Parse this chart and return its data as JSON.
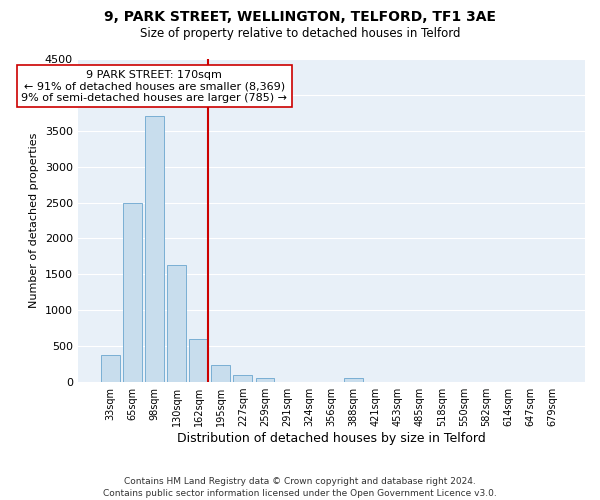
{
  "title": "9, PARK STREET, WELLINGTON, TELFORD, TF1 3AE",
  "subtitle": "Size of property relative to detached houses in Telford",
  "xlabel": "Distribution of detached houses by size in Telford",
  "ylabel": "Number of detached properties",
  "footer_line1": "Contains HM Land Registry data © Crown copyright and database right 2024.",
  "footer_line2": "Contains public sector information licensed under the Open Government Licence v3.0.",
  "bar_labels": [
    "33sqm",
    "65sqm",
    "98sqm",
    "130sqm",
    "162sqm",
    "195sqm",
    "227sqm",
    "259sqm",
    "291sqm",
    "324sqm",
    "356sqm",
    "388sqm",
    "421sqm",
    "453sqm",
    "485sqm",
    "518sqm",
    "550sqm",
    "582sqm",
    "614sqm",
    "647sqm",
    "679sqm"
  ],
  "bar_values": [
    380,
    2500,
    3700,
    1630,
    600,
    240,
    100,
    55,
    0,
    0,
    0,
    50,
    0,
    0,
    0,
    0,
    0,
    0,
    0,
    0,
    0
  ],
  "bar_color": "#c8dded",
  "bar_edge_color": "#7aafd4",
  "highlight_line_color": "#cc0000",
  "annotation_title": "9 PARK STREET: 170sqm",
  "annotation_line1": "← 91% of detached houses are smaller (8,369)",
  "annotation_line2": "9% of semi-detached houses are larger (785) →",
  "annotation_box_color": "white",
  "annotation_box_edge": "#cc0000",
  "ylim": [
    0,
    4500
  ],
  "yticks": [
    0,
    500,
    1000,
    1500,
    2000,
    2500,
    3000,
    3500,
    4000,
    4500
  ],
  "background_color": "#ffffff",
  "plot_background": "#e8f0f8",
  "grid_color": "#ffffff"
}
